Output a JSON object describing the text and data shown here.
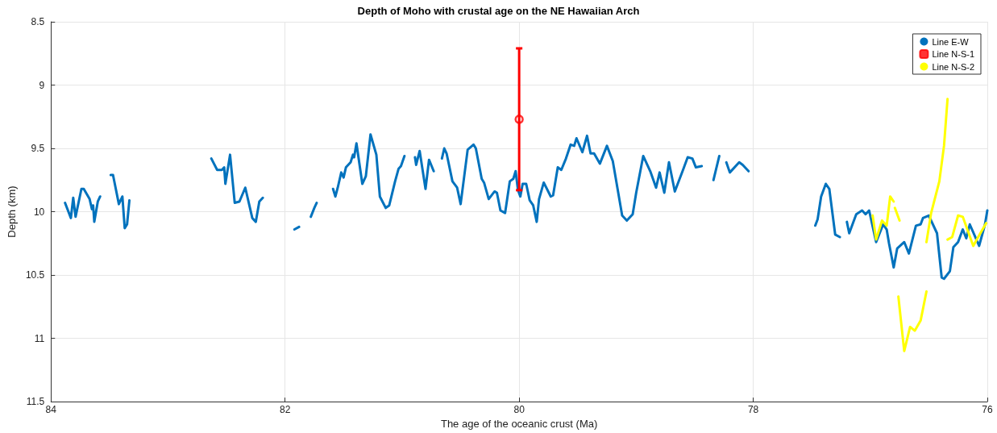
{
  "chart_data": {
    "type": "line",
    "title": "Depth of Moho with crustal age on the NE Hawaiian Arch",
    "xlabel": "The age of the oceanic crust (Ma)",
    "ylabel": "Depth (km)",
    "xlim": [
      84,
      76
    ],
    "xticks": [
      84,
      82,
      80,
      78,
      76
    ],
    "ylim": [
      11.5,
      8.5
    ],
    "yticks": [
      8.5,
      9,
      9.5,
      10,
      10.5,
      11,
      11.5
    ],
    "grid": true,
    "legend": "top right",
    "line_style": "solid",
    "series": [
      {
        "name": "Line E-W",
        "color": "#0072bd",
        "x": [
          83.88,
          83.83,
          83.81,
          83.79,
          83.74,
          83.72,
          83.67,
          83.65,
          83.64,
          83.63,
          83.6,
          83.58,
          null,
          83.49,
          83.47,
          83.42,
          83.39,
          83.37,
          83.35,
          83.33,
          null,
          82.63,
          82.58,
          82.54,
          82.52,
          82.51,
          82.47,
          82.43,
          82.39,
          82.34,
          82.28,
          82.25,
          82.22,
          82.19,
          null,
          81.92,
          81.88,
          null,
          81.78,
          81.75,
          81.73,
          null,
          81.59,
          81.57,
          81.55,
          81.52,
          81.5,
          81.48,
          81.44,
          81.42,
          81.41,
          81.39,
          81.34,
          81.31,
          81.27,
          81.22,
          81.19,
          81.14,
          81.11,
          81.06,
          81.03,
          81.01,
          80.98,
          null,
          80.89,
          80.88,
          80.85,
          80.8,
          80.77,
          80.73,
          null,
          80.66,
          80.64,
          80.62,
          80.57,
          80.53,
          80.5,
          80.44,
          80.39,
          80.37,
          80.32,
          80.3,
          80.26,
          80.21,
          80.19,
          80.16,
          80.12,
          80.08,
          80.05,
          80.03,
          80.01,
          79.99,
          79.97,
          79.94,
          79.91,
          79.88,
          79.85,
          79.83,
          79.79,
          79.73,
          79.71,
          79.67,
          79.64,
          79.6,
          79.56,
          79.53,
          79.51,
          79.46,
          79.42,
          79.39,
          79.36,
          79.31,
          79.25,
          79.2,
          79.12,
          79.08,
          79.03,
          79.0,
          78.94,
          78.88,
          78.83,
          78.8,
          78.76,
          78.72,
          78.67,
          78.6,
          78.56,
          78.52,
          78.49,
          78.44,
          null,
          78.34,
          78.29,
          null,
          78.23,
          78.2,
          78.12,
          78.09,
          78.04,
          null,
          77.47,
          77.45,
          77.42,
          77.38,
          77.35,
          77.3,
          77.26,
          null,
          77.2,
          77.18,
          77.12,
          77.07,
          77.04,
          77.01,
          76.95,
          76.89,
          76.86,
          76.84,
          76.8,
          76.77,
          76.71,
          76.67,
          76.61,
          76.57,
          76.55,
          76.5,
          76.43,
          76.39,
          76.37,
          76.32,
          76.29,
          76.25,
          76.21,
          76.18,
          76.15,
          76.07,
          76.02,
          76.0
        ],
        "values": [
          9.93,
          10.05,
          9.89,
          10.04,
          9.82,
          9.82,
          9.9,
          9.98,
          9.95,
          10.08,
          9.92,
          9.88,
          null,
          9.71,
          9.71,
          9.94,
          9.88,
          10.13,
          10.1,
          9.91,
          null,
          9.58,
          9.67,
          9.67,
          9.65,
          9.78,
          9.55,
          9.93,
          9.92,
          9.81,
          10.05,
          10.08,
          9.92,
          9.89,
          null,
          10.14,
          10.12,
          null,
          10.04,
          9.97,
          9.93,
          null,
          9.82,
          9.88,
          9.81,
          9.69,
          9.73,
          9.65,
          9.61,
          9.55,
          9.57,
          9.46,
          9.78,
          9.72,
          9.39,
          9.55,
          9.88,
          9.97,
          9.95,
          9.76,
          9.66,
          9.64,
          9.56,
          null,
          9.57,
          9.63,
          9.52,
          9.82,
          9.59,
          9.68,
          null,
          9.58,
          9.5,
          9.54,
          9.76,
          9.81,
          9.94,
          9.51,
          9.47,
          9.5,
          9.74,
          9.77,
          9.9,
          9.84,
          9.85,
          9.99,
          10.01,
          9.76,
          9.74,
          9.68,
          9.83,
          9.88,
          9.78,
          9.78,
          9.91,
          9.95,
          10.08,
          9.9,
          9.77,
          9.88,
          9.87,
          9.65,
          9.67,
          9.58,
          9.47,
          9.48,
          9.42,
          9.53,
          9.4,
          9.54,
          9.54,
          9.62,
          9.48,
          9.6,
          10.03,
          10.07,
          10.02,
          9.85,
          9.56,
          9.68,
          9.81,
          9.69,
          9.85,
          9.61,
          9.84,
          9.67,
          9.57,
          9.58,
          9.65,
          9.64,
          null,
          9.75,
          9.56,
          null,
          9.61,
          9.69,
          9.61,
          9.63,
          9.68,
          null,
          10.11,
          10.06,
          9.88,
          9.78,
          9.82,
          10.18,
          10.2,
          null,
          10.08,
          10.17,
          10.02,
          9.99,
          10.02,
          9.99,
          10.24,
          10.1,
          10.14,
          10.25,
          10.44,
          10.29,
          10.24,
          10.33,
          10.11,
          10.1,
          10.05,
          10.03,
          10.17,
          10.52,
          10.53,
          10.47,
          10.28,
          10.24,
          10.14,
          10.21,
          10.1,
          10.27,
          10.1,
          9.99
        ]
      },
      {
        "name": "Line N-S-1",
        "type": "scatter",
        "marker": "circle",
        "color": "#ff0000",
        "x": [
          80
        ],
        "values": [
          9.27
        ],
        "errors": [
          [
            8.71,
            9.83
          ]
        ]
      },
      {
        "name": "Line N-S-2",
        "color": "#ffff00",
        "x": [
          76.98,
          76.95,
          76.9,
          76.86,
          76.83,
          76.8,
          null,
          76.79,
          76.75,
          null,
          76.76,
          76.71,
          76.66,
          76.62,
          76.57,
          76.52,
          null,
          76.52,
          76.48,
          76.41,
          76.37,
          76.34,
          null,
          76.34,
          76.3,
          76.25,
          76.21,
          76.12,
          76.09,
          76.01
        ],
        "values": [
          10.03,
          10.22,
          10.07,
          10.11,
          9.88,
          9.92,
          null,
          9.97,
          10.07,
          null,
          10.67,
          11.1,
          10.91,
          10.94,
          10.86,
          10.63,
          null,
          10.24,
          10.01,
          9.76,
          9.48,
          9.11,
          null,
          10.22,
          10.2,
          10.03,
          10.04,
          10.27,
          10.22,
          10.09
        ]
      }
    ]
  }
}
